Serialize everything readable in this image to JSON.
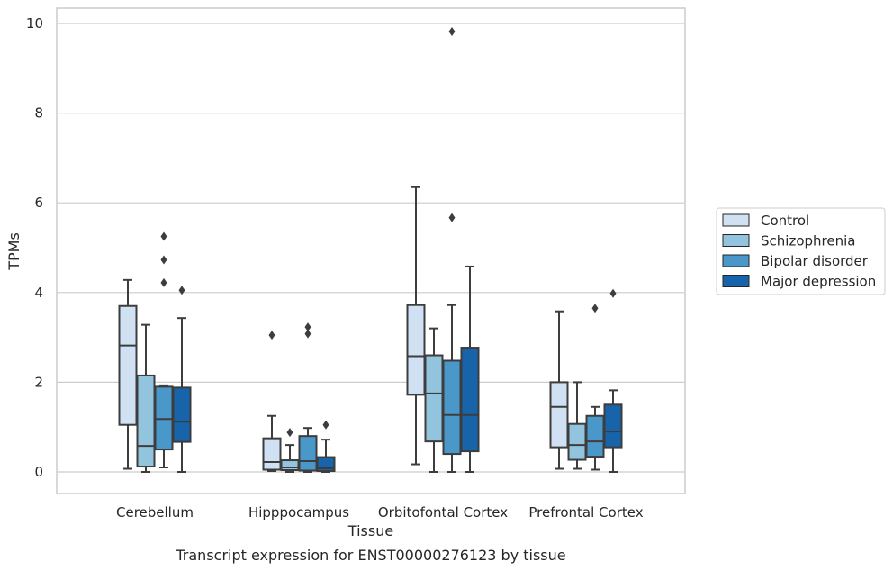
{
  "chart_data": {
    "type": "box",
    "caption": "Transcript expression for ENST00000276123 by tissue",
    "xlabel": "Tissue",
    "ylabel": "TPMs",
    "ylim": [
      -0.45,
      10.35
    ],
    "yticks": [
      0,
      2,
      4,
      6,
      8,
      10
    ],
    "grid": "horizontal",
    "legend_position": "right",
    "categories": [
      "Cerebellum",
      "Hipppocampus",
      "Orbitofontal Cortex",
      "Prefrontal Cortex"
    ],
    "series": [
      {
        "name": "Control",
        "color": "#cfe1f2",
        "boxes": [
          {
            "whislo": 0.07,
            "q1": 1.05,
            "med": 2.82,
            "q3": 3.7,
            "whishi": 4.28,
            "fliers": []
          },
          {
            "whislo": 0.02,
            "q1": 0.05,
            "med": 0.22,
            "q3": 0.75,
            "whishi": 1.25,
            "fliers": [
              3.05
            ]
          },
          {
            "whislo": 0.17,
            "q1": 1.72,
            "med": 2.58,
            "q3": 3.72,
            "whishi": 6.35,
            "fliers": []
          },
          {
            "whislo": 0.07,
            "q1": 0.55,
            "med": 1.45,
            "q3": 2.0,
            "whishi": 3.58,
            "fliers": []
          }
        ]
      },
      {
        "name": "Schizophrenia",
        "color": "#93c4de",
        "boxes": [
          {
            "whislo": 0.0,
            "q1": 0.12,
            "med": 0.58,
            "q3": 2.15,
            "whishi": 3.28,
            "fliers": []
          },
          {
            "whislo": 0.0,
            "q1": 0.04,
            "med": 0.1,
            "q3": 0.26,
            "whishi": 0.6,
            "fliers": [
              0.88
            ]
          },
          {
            "whislo": 0.0,
            "q1": 0.68,
            "med": 1.75,
            "q3": 2.6,
            "whishi": 3.2,
            "fliers": []
          },
          {
            "whislo": 0.07,
            "q1": 0.27,
            "med": 0.6,
            "q3": 1.07,
            "whishi": 2.0,
            "fliers": []
          }
        ]
      },
      {
        "name": "Bipolar disorder",
        "color": "#4a98c9",
        "boxes": [
          {
            "whislo": 0.1,
            "q1": 0.5,
            "med": 1.18,
            "q3": 1.9,
            "whishi": 1.93,
            "fliers": [
              4.22,
              4.73,
              5.25
            ]
          },
          {
            "whislo": 0.0,
            "q1": 0.03,
            "med": 0.24,
            "q3": 0.8,
            "whishi": 0.98,
            "fliers": [
              3.08,
              3.23
            ]
          },
          {
            "whislo": 0.0,
            "q1": 0.4,
            "med": 1.27,
            "q3": 2.48,
            "whishi": 3.72,
            "fliers": [
              5.67,
              9.82
            ]
          },
          {
            "whislo": 0.05,
            "q1": 0.34,
            "med": 0.68,
            "q3": 1.25,
            "whishi": 1.45,
            "fliers": [
              3.65
            ]
          }
        ]
      },
      {
        "name": "Major depression",
        "color": "#1764ab",
        "boxes": [
          {
            "whislo": 0.0,
            "q1": 0.67,
            "med": 1.12,
            "q3": 1.88,
            "whishi": 3.43,
            "fliers": [
              4.05
            ]
          },
          {
            "whislo": 0.0,
            "q1": 0.02,
            "med": 0.08,
            "q3": 0.33,
            "whishi": 0.72,
            "fliers": [
              1.05
            ]
          },
          {
            "whislo": 0.0,
            "q1": 0.46,
            "med": 1.27,
            "q3": 2.77,
            "whishi": 4.58,
            "fliers": []
          },
          {
            "whislo": 0.0,
            "q1": 0.55,
            "med": 0.9,
            "q3": 1.5,
            "whishi": 1.82,
            "fliers": [
              3.98
            ]
          }
        ]
      }
    ]
  }
}
